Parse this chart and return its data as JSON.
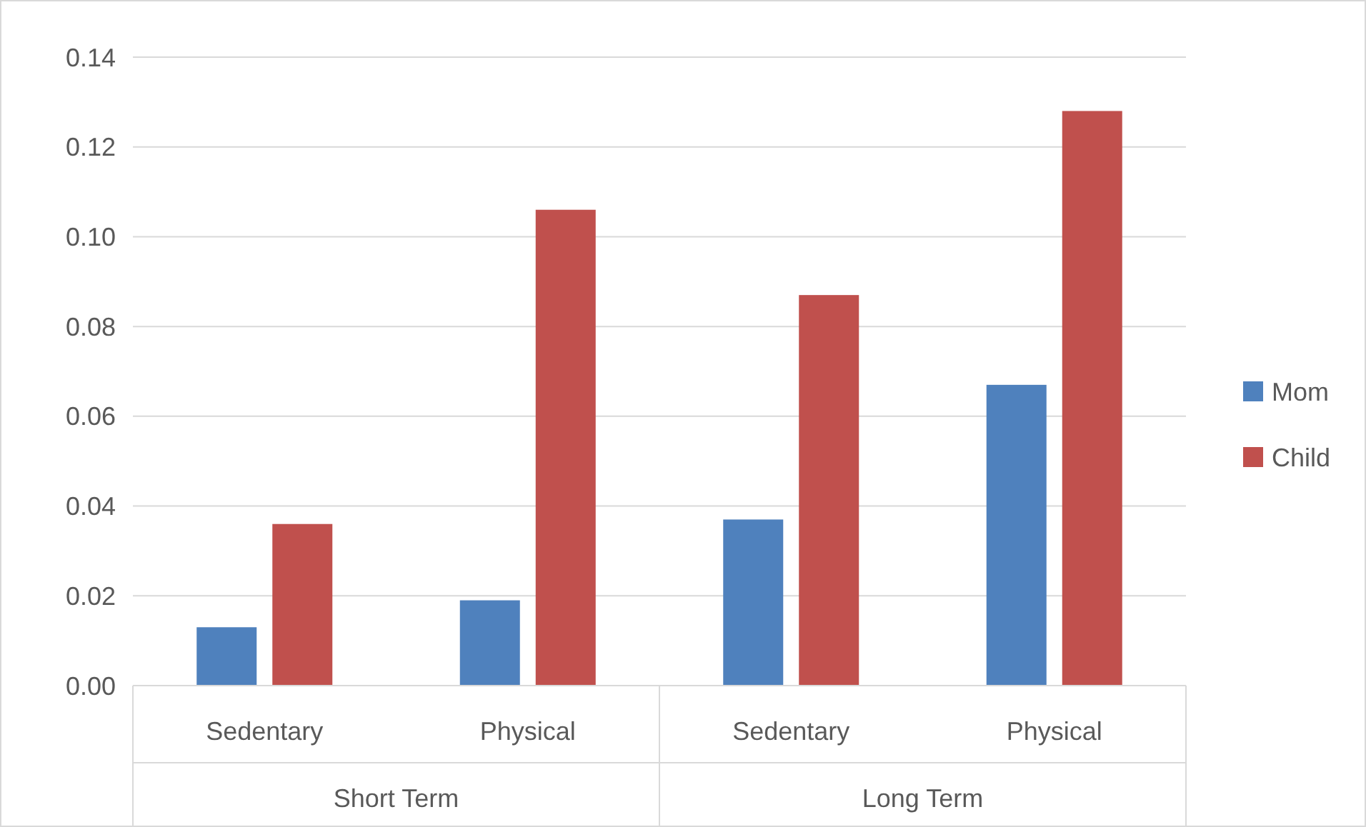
{
  "chart_data": {
    "type": "bar",
    "categories": [
      "Sedentary",
      "Physical",
      "Sedentary",
      "Physical"
    ],
    "series": [
      {
        "name": "Mom",
        "color": "#4f81bd",
        "values": [
          0.013,
          0.019,
          0.037,
          0.067
        ]
      },
      {
        "name": "Child",
        "color": "#c0504d",
        "values": [
          0.036,
          0.106,
          0.087,
          0.128
        ]
      }
    ],
    "annotations": [
      "Short Term",
      "Long Term"
    ],
    "ylim": [
      0,
      0.14
    ],
    "yticks": [
      {
        "value": 0,
        "label": "0.00"
      },
      {
        "value": 0.02,
        "label": "0.02"
      },
      {
        "value": 0.04,
        "label": "0.04"
      },
      {
        "value": 0.06,
        "label": "0.06"
      },
      {
        "value": 0.08,
        "label": "0.08"
      },
      {
        "value": 0.1,
        "label": "0.10"
      },
      {
        "value": 0.12,
        "label": "0.12"
      },
      {
        "value": 0.14,
        "label": "0.14"
      }
    ],
    "grid": "y",
    "legend": "right"
  }
}
